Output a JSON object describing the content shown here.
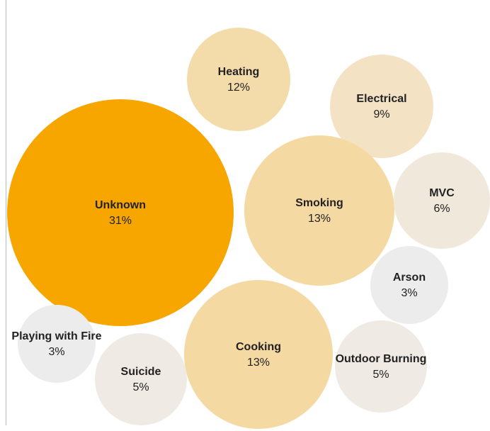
{
  "chart_data": {
    "type": "packed_bubble",
    "categories": [
      "Unknown",
      "Heating",
      "Electrical",
      "Smoking",
      "MVC",
      "Arson",
      "Cooking",
      "Outdoor Burning",
      "Suicide",
      "Playing with Fire"
    ],
    "values": [
      31,
      12,
      9,
      13,
      6,
      3,
      13,
      5,
      5,
      3
    ],
    "value_labels": [
      "31%",
      "12%",
      "9%",
      "13%",
      "6%",
      "3%",
      "13%",
      "5%",
      "5%",
      "3%"
    ],
    "colors": [
      "#f7a600",
      "#f4dcaa",
      "#f3e3c4",
      "#f4d9a3",
      "#f0e8da",
      "#ececec",
      "#f4d9a3",
      "#efebe4",
      "#efebe4",
      "#ececec"
    ]
  }
}
